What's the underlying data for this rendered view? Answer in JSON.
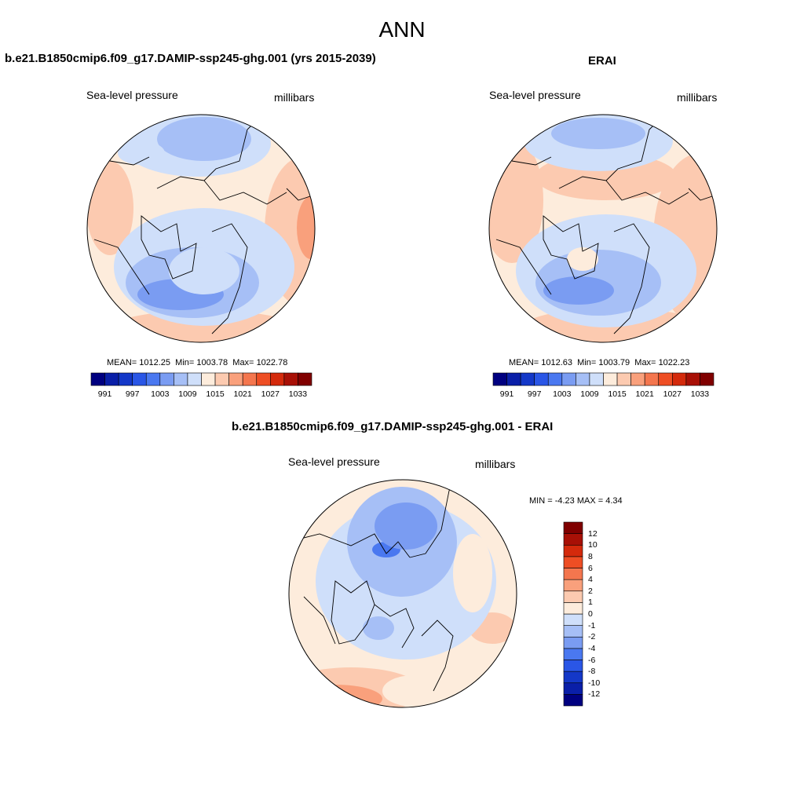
{
  "figure": {
    "title": "ANN"
  },
  "panels": {
    "model": {
      "title": "b.e21.B1850cmip6.f09_g17.DAMIP-ssp245-ghg.001 (yrs 2015-2039)",
      "variable": "Sea-level pressure",
      "units": "millibars",
      "stats": {
        "mean_label": "MEAN=",
        "mean": "1012.25",
        "min_label": "Min=",
        "min": "1003.78",
        "max_label": "Max=",
        "max": "1022.78"
      }
    },
    "obs": {
      "title": "ERAI",
      "variable": "Sea-level pressure",
      "units": "millibars",
      "stats": {
        "mean_label": "MEAN=",
        "mean": "1012.63",
        "min_label": "Min=",
        "min": "1003.79",
        "max_label": "Max=",
        "max": "1022.23"
      }
    },
    "diff": {
      "title": "b.e21.B1850cmip6.f09_g17.DAMIP-ssp245-ghg.001 - ERAI",
      "variable": "Sea-level pressure",
      "units": "millibars",
      "stats": {
        "min_label": "MIN =",
        "min": "-4.23",
        "max_label": "MAX =",
        "max": "4.34"
      }
    }
  },
  "colorbars": {
    "field": {
      "colors": [
        "#000080",
        "#0a1fa8",
        "#1438c8",
        "#2a56e6",
        "#4a78f0",
        "#7a9cf2",
        "#a6bff6",
        "#cfdffa",
        "#fdecdc",
        "#fccab0",
        "#f9a07c",
        "#f4764e",
        "#ee4e24",
        "#d42a0c",
        "#a81006",
        "#800000"
      ],
      "tick_labels": [
        "991",
        "997",
        "1003",
        "1009",
        "1015",
        "1021",
        "1027",
        "1033"
      ]
    },
    "diff": {
      "colors": [
        "#000080",
        "#0a1fa8",
        "#1438c8",
        "#2a56e6",
        "#4a78f0",
        "#7a9cf2",
        "#a6bff6",
        "#cfdffa",
        "#fdecdc",
        "#fccab0",
        "#f9a07c",
        "#f4764e",
        "#ee4e24",
        "#d42a0c",
        "#a81006",
        "#800000"
      ],
      "tick_labels": [
        "-12",
        "-10",
        "-8",
        "-6",
        "-4",
        "-2",
        "-1",
        "0",
        "1",
        "2",
        "4",
        "6",
        "8",
        "10",
        "12"
      ]
    }
  },
  "chart_data": [
    {
      "type": "heatmap",
      "projection": "north-polar-stereographic",
      "title": "b.e21.B1850cmip6.f09_g17.DAMIP-ssp245-ghg.001 (yrs 2015-2039)",
      "field": "Sea-level pressure",
      "units": "millibars",
      "mean": 1012.25,
      "min": 1003.78,
      "max": 1022.78,
      "levels": [
        991,
        997,
        1003,
        1009,
        1015,
        1021,
        1027,
        1033
      ]
    },
    {
      "type": "heatmap",
      "projection": "north-polar-stereographic",
      "title": "ERAI",
      "field": "Sea-level pressure",
      "units": "millibars",
      "mean": 1012.63,
      "min": 1003.79,
      "max": 1022.23,
      "levels": [
        991,
        997,
        1003,
        1009,
        1015,
        1021,
        1027,
        1033
      ]
    },
    {
      "type": "heatmap",
      "projection": "north-polar-stereographic",
      "title": "b.e21.B1850cmip6.f09_g17.DAMIP-ssp245-ghg.001 - ERAI",
      "field": "Sea-level pressure",
      "units": "millibars",
      "min": -4.23,
      "max": 4.34,
      "levels": [
        -12,
        -10,
        -8,
        -6,
        -4,
        -2,
        -1,
        0,
        1,
        2,
        4,
        6,
        8,
        10,
        12
      ]
    }
  ]
}
